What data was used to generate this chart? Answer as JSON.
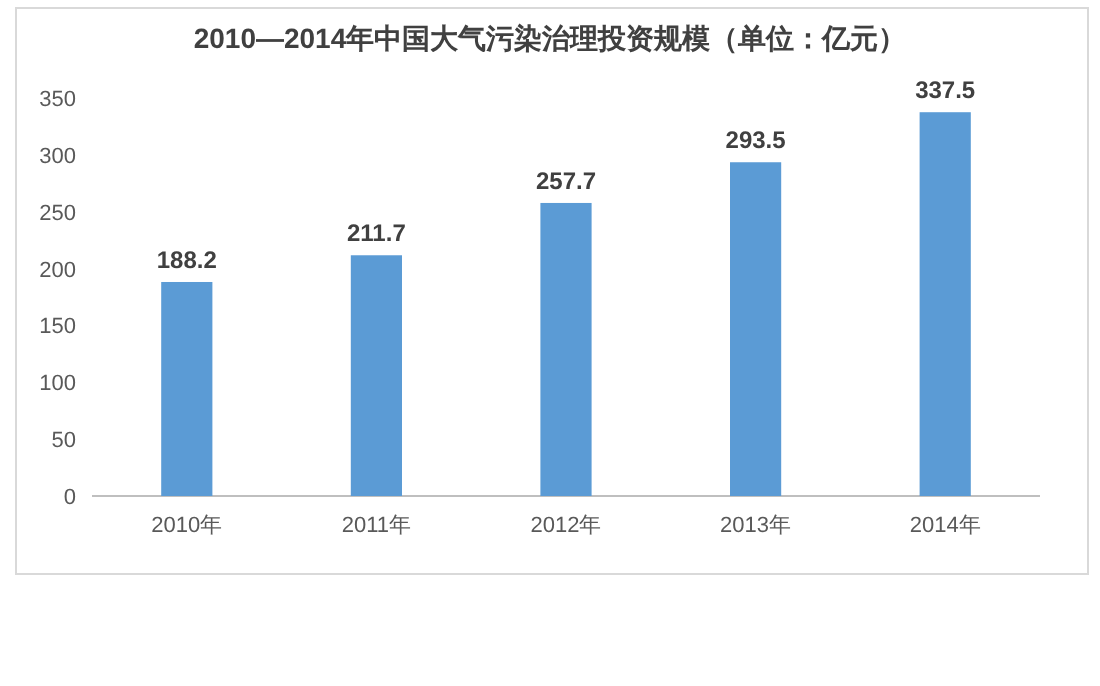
{
  "chart_data": {
    "type": "bar",
    "title": "2010—2014年中国大气污染治理投资规模（单位：亿元）",
    "categories": [
      "2010年",
      "2011年",
      "2012年",
      "2013年",
      "2014年"
    ],
    "values": [
      188.2,
      211.7,
      257.7,
      293.5,
      337.5
    ],
    "color": "#5b9bd5",
    "ylim": [
      0,
      350
    ],
    "yticks": [
      0,
      50,
      100,
      150,
      200,
      250,
      300,
      350
    ],
    "data_labels": true
  }
}
